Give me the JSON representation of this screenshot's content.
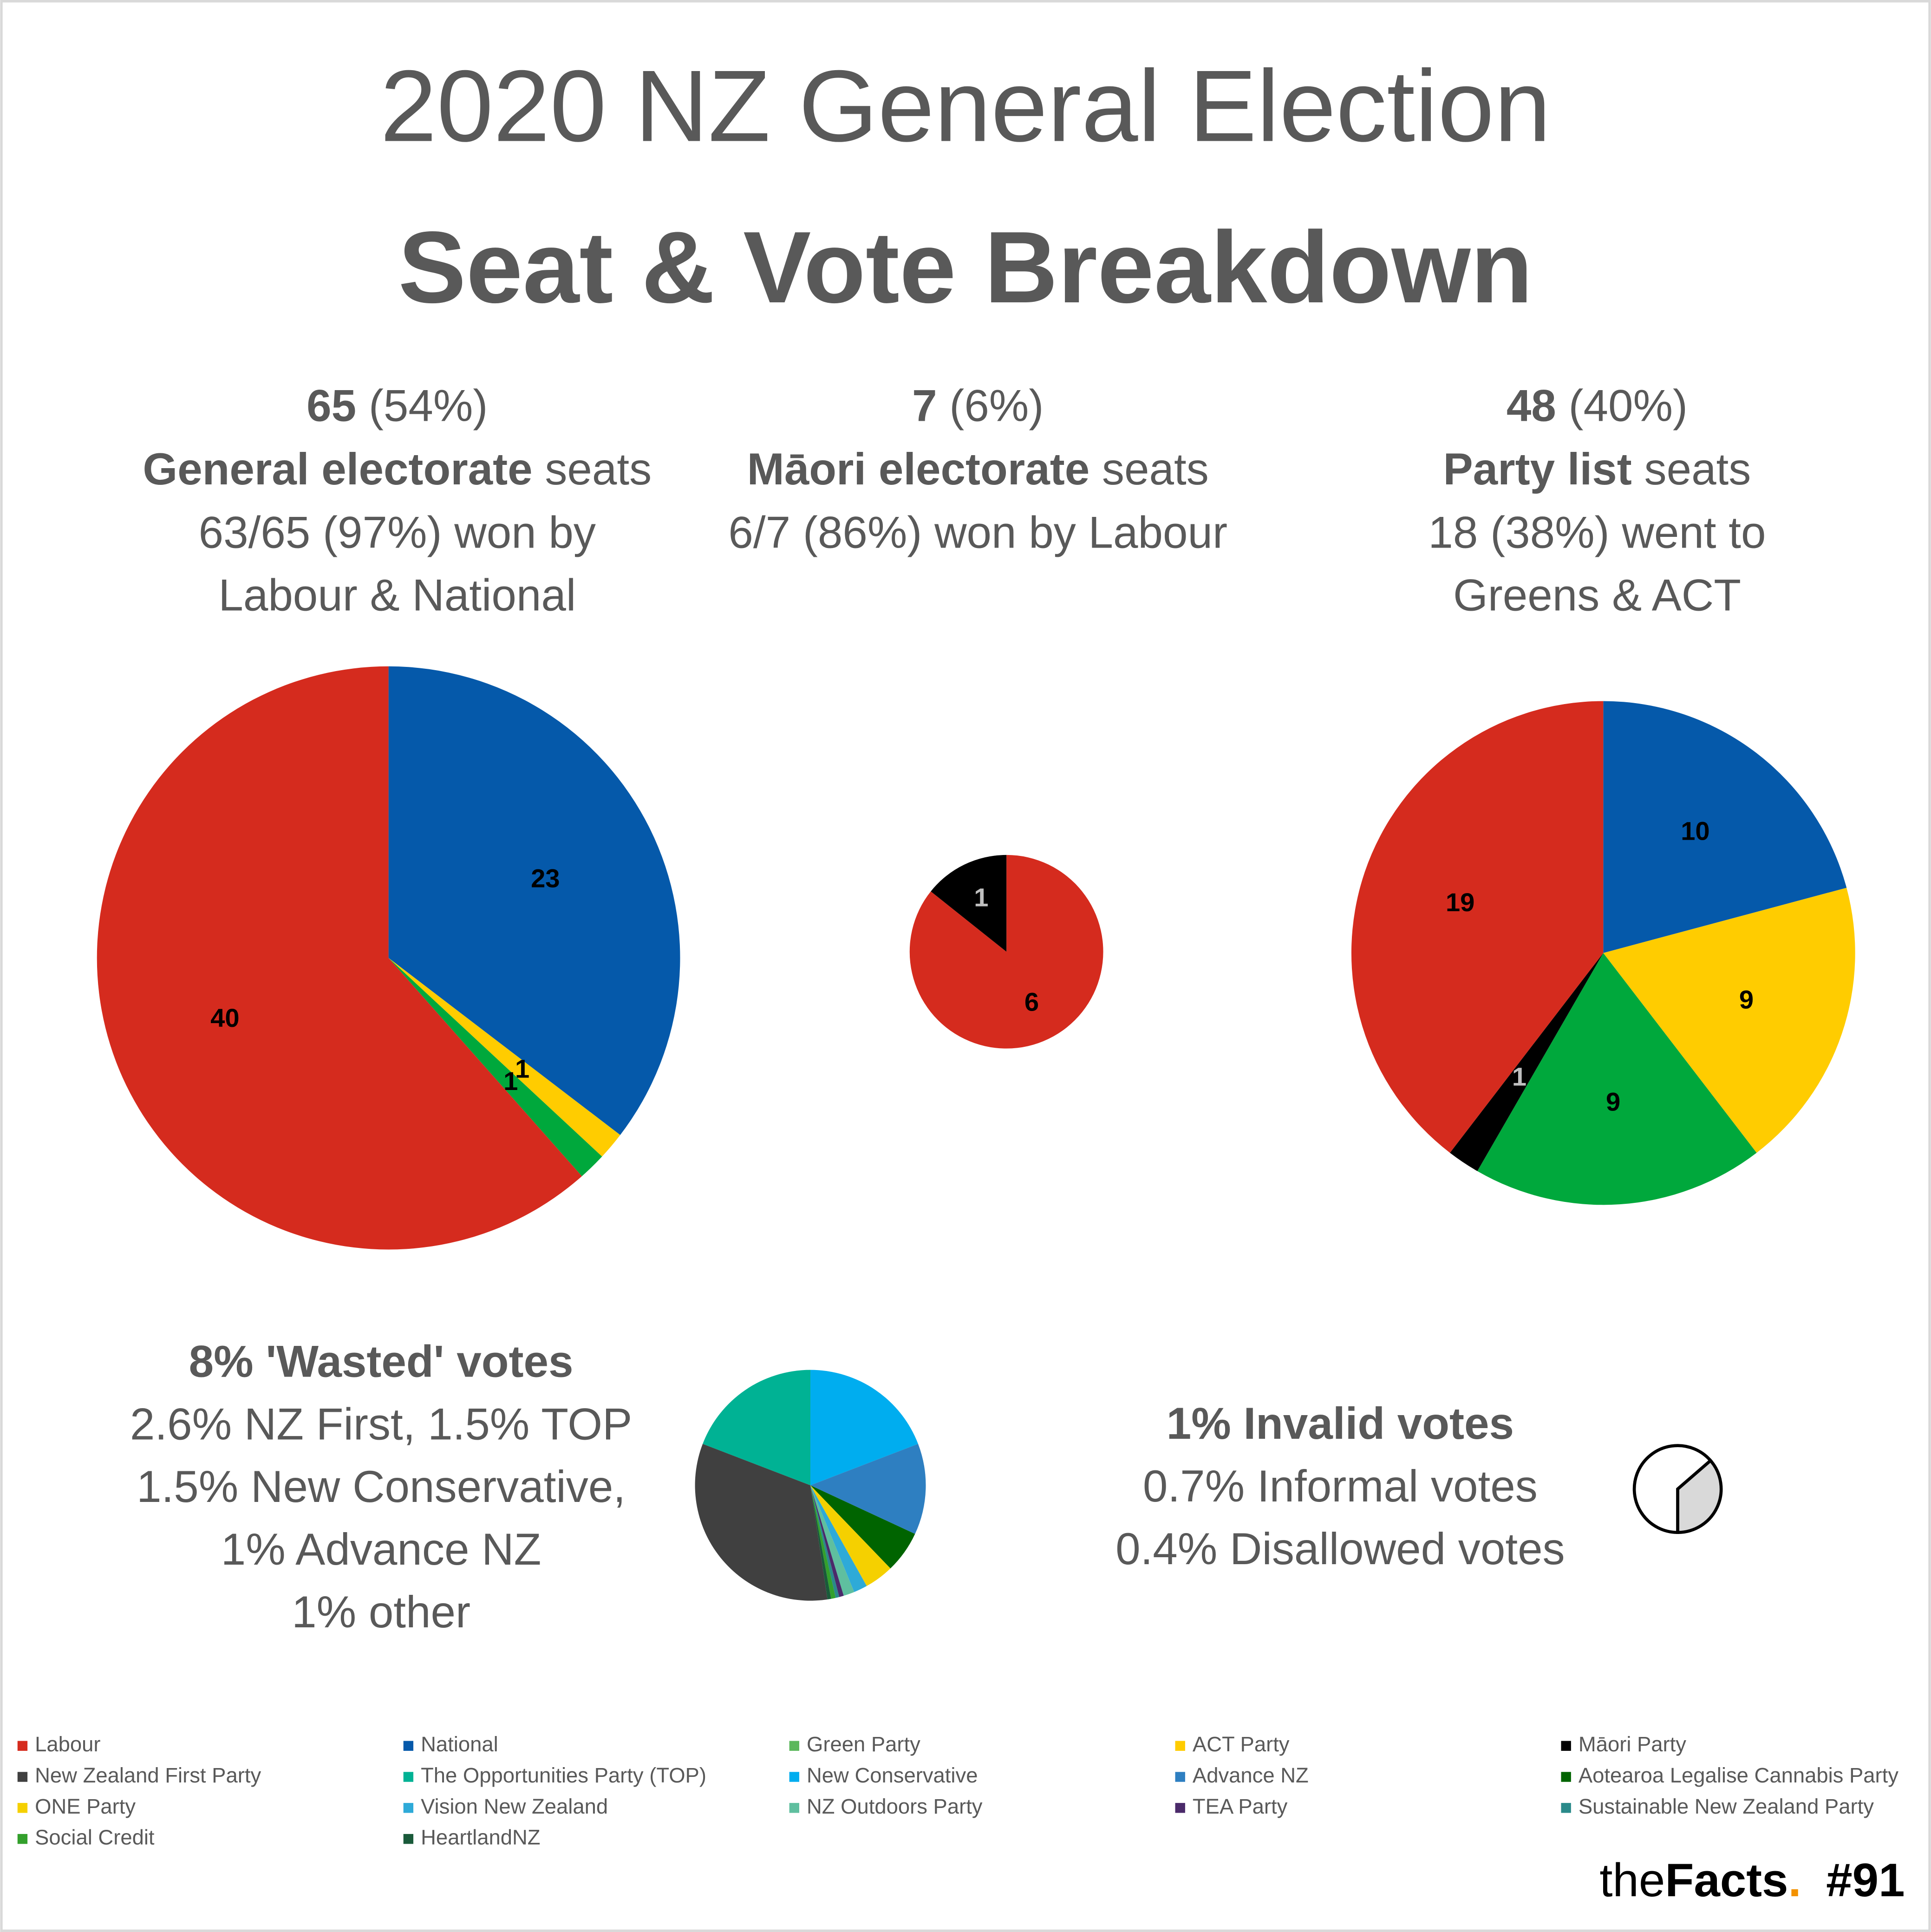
{
  "title": "2020 NZ General Election",
  "subtitle": "Seat & Vote Breakdown",
  "chart_data": [
    {
      "type": "pie",
      "header": {
        "count": "65",
        "share": "(54%)",
        "label_bold": "General electorate",
        "label": "seats"
      },
      "notes": [
        "63/65 (97%) won by",
        "Labour & National"
      ],
      "categories": [
        "National",
        "ACT Party",
        "Green Party",
        "Labour"
      ],
      "values": [
        23,
        1,
        1,
        40
      ],
      "colors": [
        "#0559aa",
        "#ffcc00",
        "#00a83c",
        "#d52b1e"
      ],
      "data_labels": true
    },
    {
      "type": "pie",
      "header": {
        "count": "7",
        "share": "(6%)",
        "label_bold": "Māori electorate",
        "label": "seats"
      },
      "notes": [
        "6/7 (86%) won by Labour"
      ],
      "categories": [
        "Labour",
        "Māori Party"
      ],
      "values": [
        6,
        1
      ],
      "colors": [
        "#d52b1e",
        "#000000"
      ],
      "data_labels": true
    },
    {
      "type": "pie",
      "header": {
        "count": "48",
        "share": "(40%)",
        "label_bold": "Party list",
        "label": "seats"
      },
      "notes": [
        "18 (38%) went to",
        "Greens & ACT"
      ],
      "categories": [
        "National",
        "ACT Party",
        "Green Party",
        "Māori Party",
        "Labour"
      ],
      "values": [
        10,
        9,
        9,
        1,
        19
      ],
      "colors": [
        "#0559aa",
        "#ffcc00",
        "#00a83c",
        "#000000",
        "#d52b1e"
      ],
      "data_labels": true
    },
    {
      "type": "pie",
      "heading": "8% 'Wasted' votes",
      "notes": [
        "2.6% NZ First, 1.5% TOP",
        "1.5% New Conservative,",
        "1% Advance NZ",
        "1% other"
      ],
      "categories": [
        "New Conservative",
        "Advance NZ",
        "Aotearoa Legalise Cannabis Party",
        "ONE Party",
        "Vision New Zealand",
        "NZ Outdoors Party",
        "TEA Party",
        "Sustainable New Zealand Party",
        "Social Credit",
        "HeartlandNZ",
        "New Zealand First Party",
        "The Opportunities Party (TOP)"
      ],
      "values": [
        1.5,
        1.0,
        0.46,
        0.32,
        0.15,
        0.12,
        0.05,
        0.04,
        0.05,
        0.04,
        2.6,
        1.5
      ],
      "colors": [
        "#00adef",
        "#2e7fc1",
        "#006400",
        "#f5d000",
        "#2eaad8",
        "#5fbf9f",
        "#4b2a6a",
        "#2a8a8a",
        "#33a02c",
        "#1a5a3a",
        "#404040",
        "#00b294"
      ],
      "data_labels": false
    },
    {
      "type": "pie",
      "heading": "1% Invalid votes",
      "notes": [
        "0.7% Informal votes",
        "0.4% Disallowed votes"
      ],
      "values": [
        0.7,
        0.4
      ],
      "colors": [
        "#ffffff",
        "#d9d9d9"
      ],
      "data_labels": false
    }
  ],
  "legend": [
    {
      "name": "Labour",
      "color": "#d52b1e"
    },
    {
      "name": "National",
      "color": "#0559aa"
    },
    {
      "name": "Green Party",
      "color": "#5cb85c"
    },
    {
      "name": "ACT Party",
      "color": "#ffcc00"
    },
    {
      "name": "Māori Party",
      "color": "#000000"
    },
    {
      "name": "New Zealand First Party",
      "color": "#404040"
    },
    {
      "name": "The Opportunities Party (TOP)",
      "color": "#00b294"
    },
    {
      "name": "New Conservative",
      "color": "#00adef"
    },
    {
      "name": "Advance NZ",
      "color": "#2e7fc1"
    },
    {
      "name": "Aotearoa Legalise Cannabis Party",
      "color": "#006400"
    },
    {
      "name": "ONE Party",
      "color": "#f5d000"
    },
    {
      "name": "Vision New Zealand",
      "color": "#2eaad8"
    },
    {
      "name": "NZ Outdoors Party",
      "color": "#5fbf9f"
    },
    {
      "name": "TEA Party",
      "color": "#4b2a6a"
    },
    {
      "name": "Sustainable New Zealand Party",
      "color": "#2a8a8a"
    },
    {
      "name": "Social Credit",
      "color": "#33a02c"
    },
    {
      "name": "HeartlandNZ",
      "color": "#1a5a3a"
    }
  ],
  "footer": {
    "brand_light": "the",
    "brand_bold": "Facts",
    "brand_dot": ".",
    "issue": "#91"
  }
}
